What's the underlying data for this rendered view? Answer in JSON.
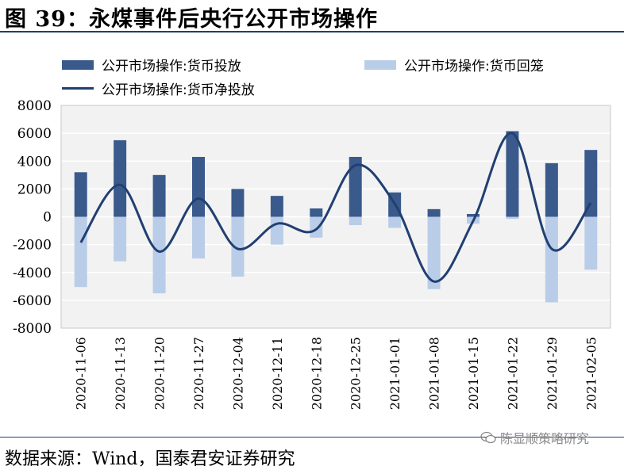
{
  "figure": {
    "title": "图 39：永煤事件后央行公开市场操作",
    "source": "数据来源：Wind，国泰君安证券研究",
    "watermark": "陈显顺策略研究",
    "watermark_icon": "wechat-icon"
  },
  "colors": {
    "injection": "#3a5a8c",
    "withdrawal": "#b9cde8",
    "net_line": "#213f72",
    "plot_bg": "#f2f2f2",
    "gridline": "#ffffff",
    "rule": "#1f3f72"
  },
  "chart_data": {
    "type": "bar",
    "categories": [
      "2020-11-06",
      "2020-11-13",
      "2020-11-20",
      "2020-11-27",
      "2020-12-04",
      "2020-12-11",
      "2020-12-18",
      "2020-12-25",
      "2021-01-01",
      "2021-01-08",
      "2021-01-15",
      "2021-01-22",
      "2021-01-29",
      "2021-02-05"
    ],
    "series": [
      {
        "name": "公开市场操作:货币投放",
        "type": "bar",
        "values": [
          3200,
          5500,
          3000,
          4300,
          2000,
          1500,
          600,
          4300,
          1750,
          550,
          200,
          6150,
          3850,
          4800
        ]
      },
      {
        "name": "公开市场操作:货币回笼",
        "type": "bar",
        "values": [
          -5050,
          -3200,
          -5500,
          -3000,
          -4300,
          -2000,
          -1500,
          -600,
          -800,
          -5200,
          -500,
          -150,
          -6150,
          -3800
        ]
      },
      {
        "name": "公开市场操作:货币净投放",
        "type": "line",
        "values": [
          -1850,
          2300,
          -2500,
          1300,
          -2300,
          -500,
          -900,
          3700,
          950,
          -4650,
          -300,
          6000,
          -2300,
          1000
        ]
      }
    ],
    "yticks": [
      8000,
      6000,
      4000,
      2000,
      0,
      -2000,
      -4000,
      -6000,
      -8000
    ],
    "ylim": [
      -8000,
      8000
    ],
    "grid": true,
    "legend_position": "top"
  }
}
